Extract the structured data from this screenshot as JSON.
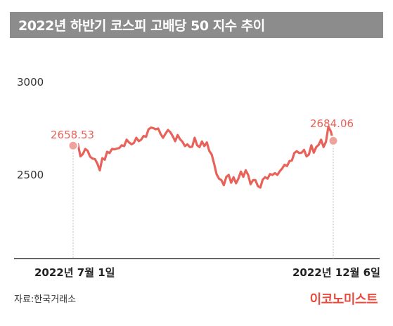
{
  "header": {
    "title": "2022년 하반기 코스피 고배당 50 지수 추이"
  },
  "footer": {
    "source": "자료:한국거래소",
    "brand": "이코노미스트"
  },
  "colors": {
    "line": "#e8625a",
    "marker_fill": "#f0a29c",
    "title_bg": "#8c8c8c",
    "brand": "#e84a3d"
  },
  "chart_data": {
    "type": "line",
    "title": "2022년 하반기 코스피 고배당 50 지수 추이",
    "xlabel": "",
    "ylabel": "",
    "x_ticks": [
      "2022년 7월 1일",
      "2022년 12월 6일"
    ],
    "y_ticks": [
      3000,
      2500
    ],
    "ylim": [
      2050,
      3090
    ],
    "grid": false,
    "annotations": [
      {
        "label": "2658.53",
        "at": "start"
      },
      {
        "label": "2684.06",
        "at": "end"
      }
    ],
    "series": [
      {
        "values": [
          2658,
          2645,
          2665,
          2600,
          2612,
          2640,
          2630,
          2598,
          2588,
          2585,
          2560,
          2525,
          2590,
          2582,
          2625,
          2618,
          2640,
          2638,
          2642,
          2645,
          2660,
          2655,
          2690,
          2675,
          2665,
          2672,
          2700,
          2682,
          2690,
          2710,
          2705,
          2745,
          2755,
          2752,
          2746,
          2750,
          2720,
          2700,
          2722,
          2742,
          2730,
          2708,
          2682,
          2715,
          2692,
          2678,
          2655,
          2665,
          2650,
          2652,
          2700,
          2660,
          2650,
          2680,
          2655,
          2675,
          2630,
          2610,
          2560,
          2505,
          2480,
          2472,
          2445,
          2490,
          2500,
          2458,
          2488,
          2455,
          2480,
          2518,
          2490,
          2525,
          2500,
          2450,
          2472,
          2472,
          2440,
          2432,
          2475,
          2488,
          2480,
          2505,
          2500,
          2510,
          2500,
          2520,
          2535,
          2555,
          2548,
          2575,
          2578,
          2618,
          2628,
          2618,
          2620,
          2635,
          2600,
          2610,
          2660,
          2620,
          2650,
          2662,
          2690,
          2650,
          2678,
          2760,
          2735,
          2684
        ]
      }
    ]
  }
}
